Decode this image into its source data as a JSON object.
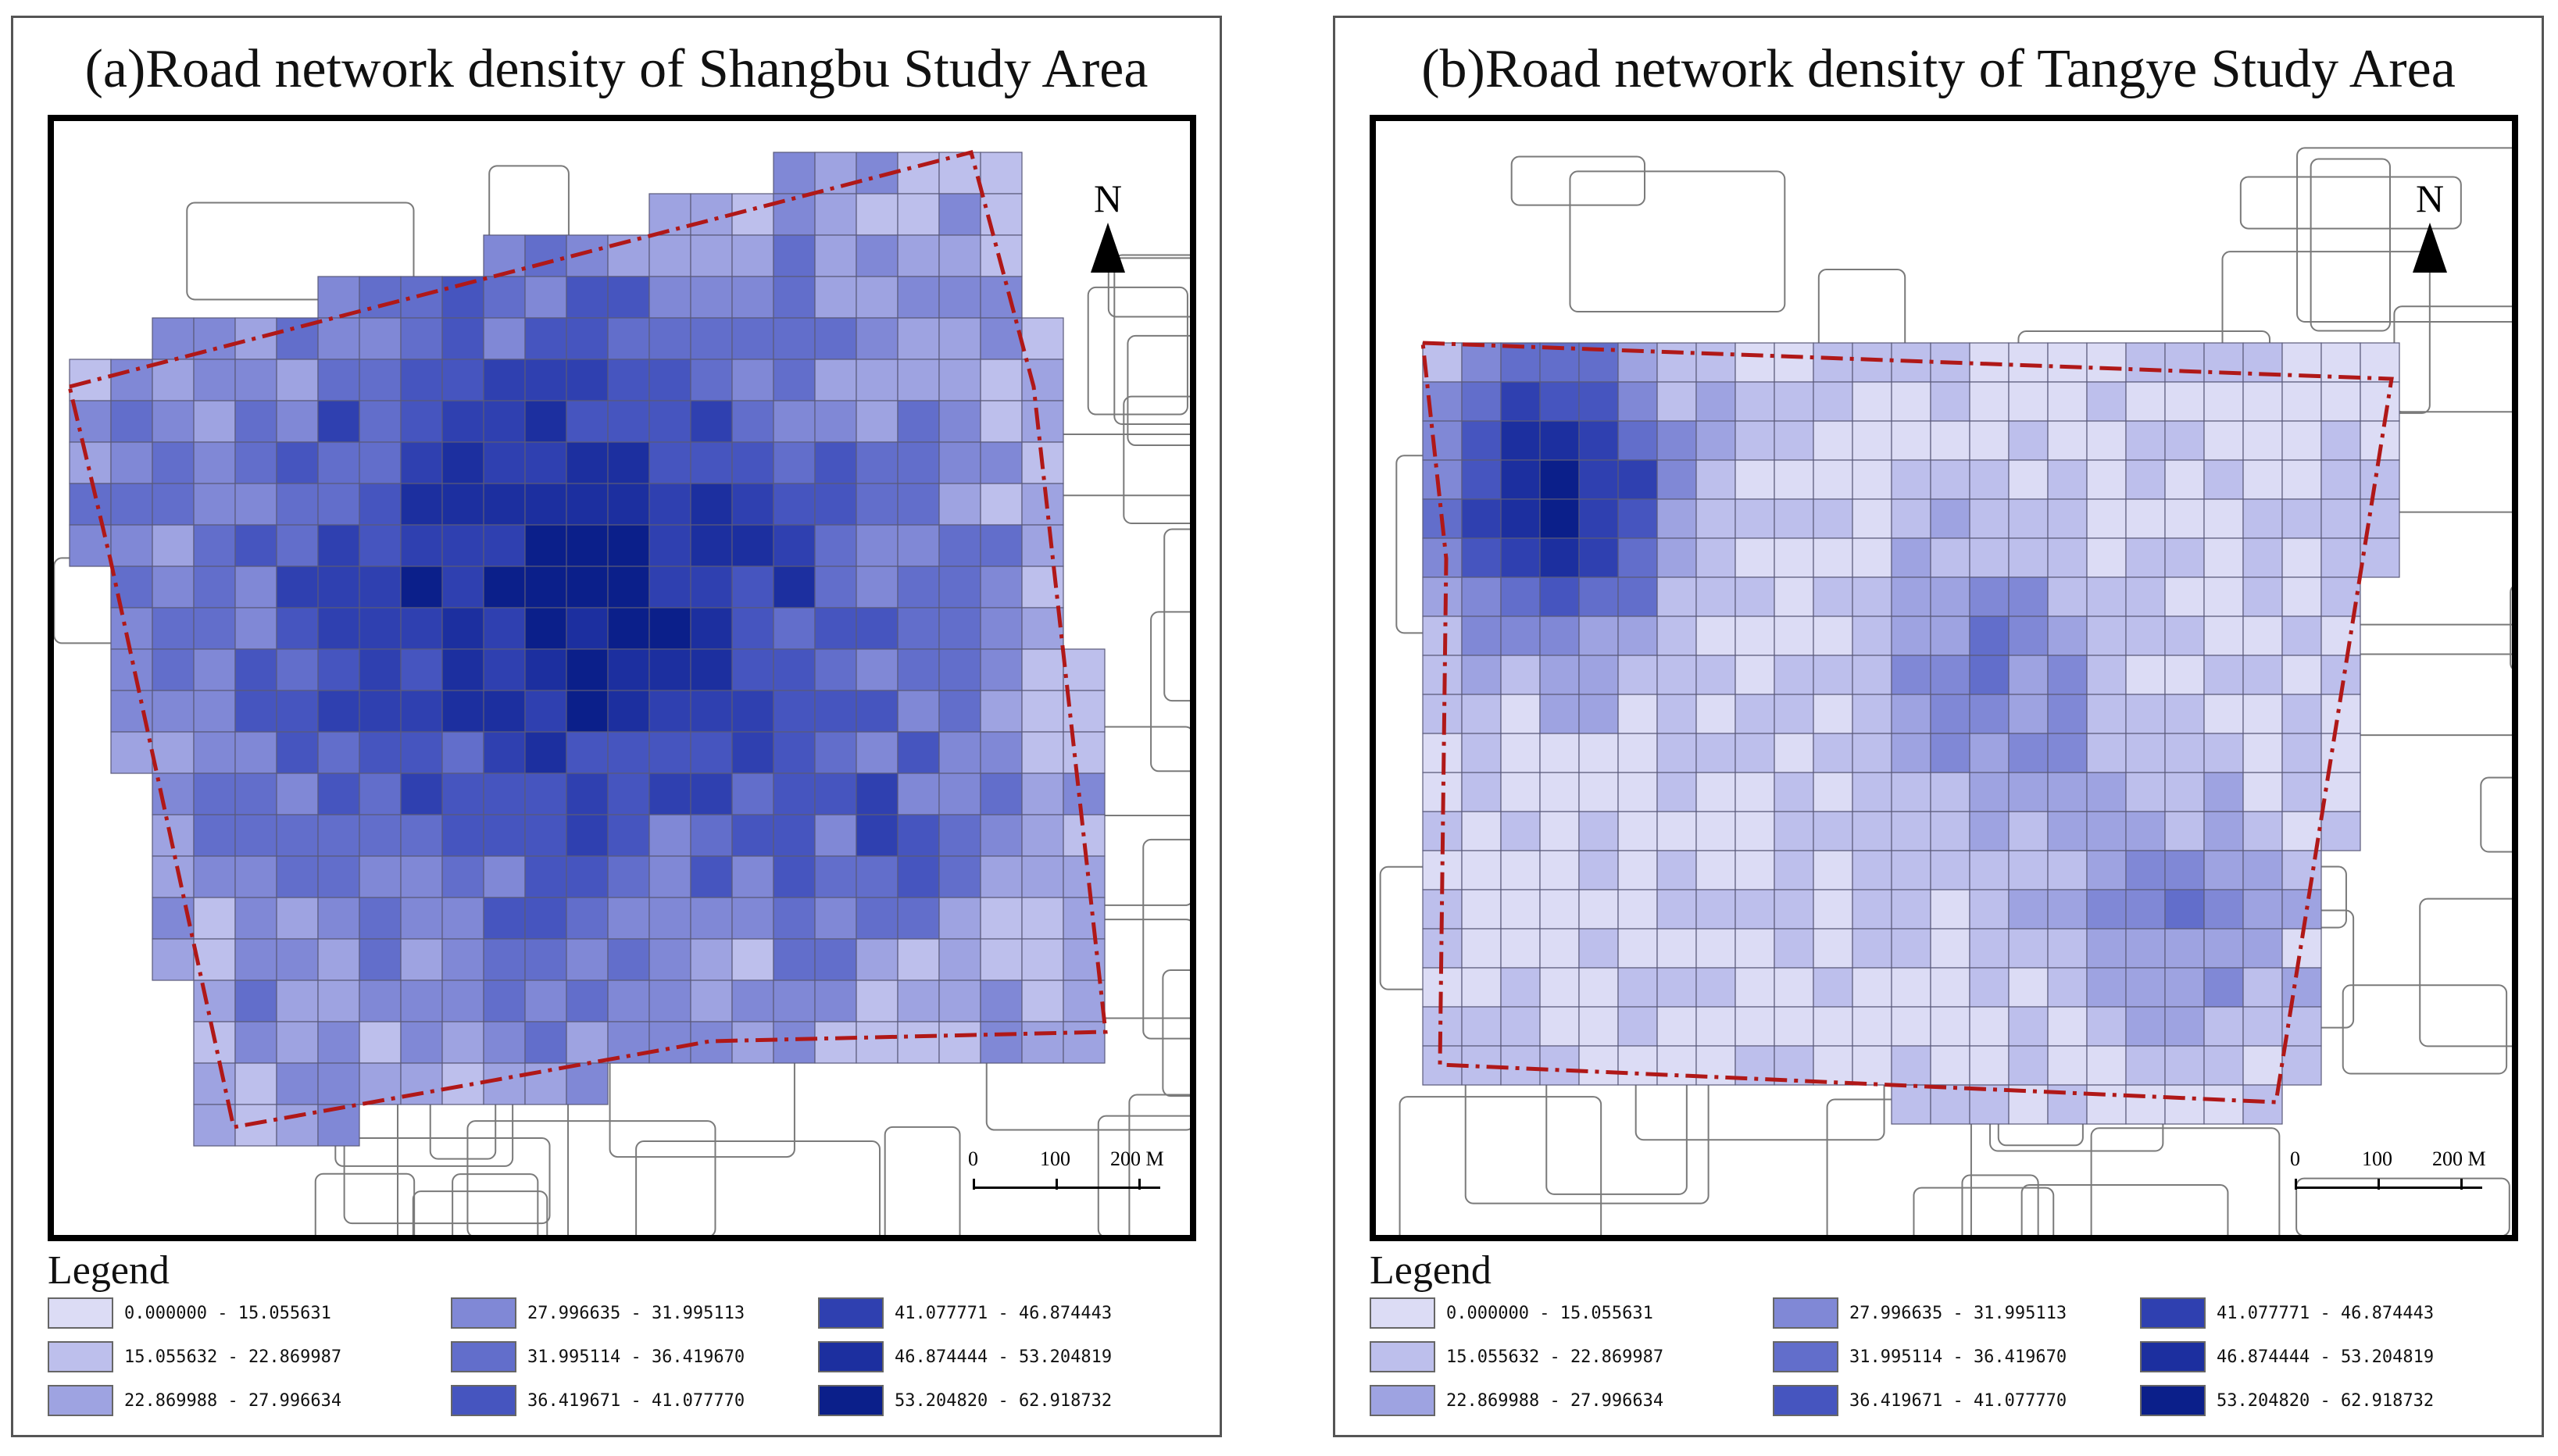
{
  "panels": [
    {
      "id": "a",
      "title": "(a)Road network density of Shangbu Study Area",
      "north_label": "N",
      "scale_labels": [
        "0",
        "100",
        "200 M"
      ],
      "legend_title": "Legend"
    },
    {
      "id": "b",
      "title": "(b)Road network density of Tangye Study Area",
      "north_label": "N",
      "scale_labels": [
        "0",
        "100",
        "200 M"
      ],
      "legend_title": "Legend"
    }
  ],
  "legend": {
    "classes": [
      {
        "label": "0.000000 - 15.055631",
        "color": "#dcdcf5"
      },
      {
        "label": "15.055632 - 22.869987",
        "color": "#bdbfec"
      },
      {
        "label": "22.869988 - 27.996634",
        "color": "#9ea3e1"
      },
      {
        "label": "27.996635 - 31.995113",
        "color": "#8088d6"
      },
      {
        "label": "31.995114 - 36.419670",
        "color": "#626ecb"
      },
      {
        "label": "36.419671 - 41.077770",
        "color": "#4655bf"
      },
      {
        "label": "41.077771 - 46.874443",
        "color": "#2f40b0"
      },
      {
        "label": "46.874444 - 53.204819",
        "color": "#1c2f9f"
      },
      {
        "label": "53.204820 - 62.918732",
        "color": "#0b1f8a"
      }
    ]
  },
  "colors": {
    "boundary": "#b01818",
    "roads": "#7a7a7a",
    "grid_line": "#5a5a7a",
    "frame": "#000000"
  }
}
